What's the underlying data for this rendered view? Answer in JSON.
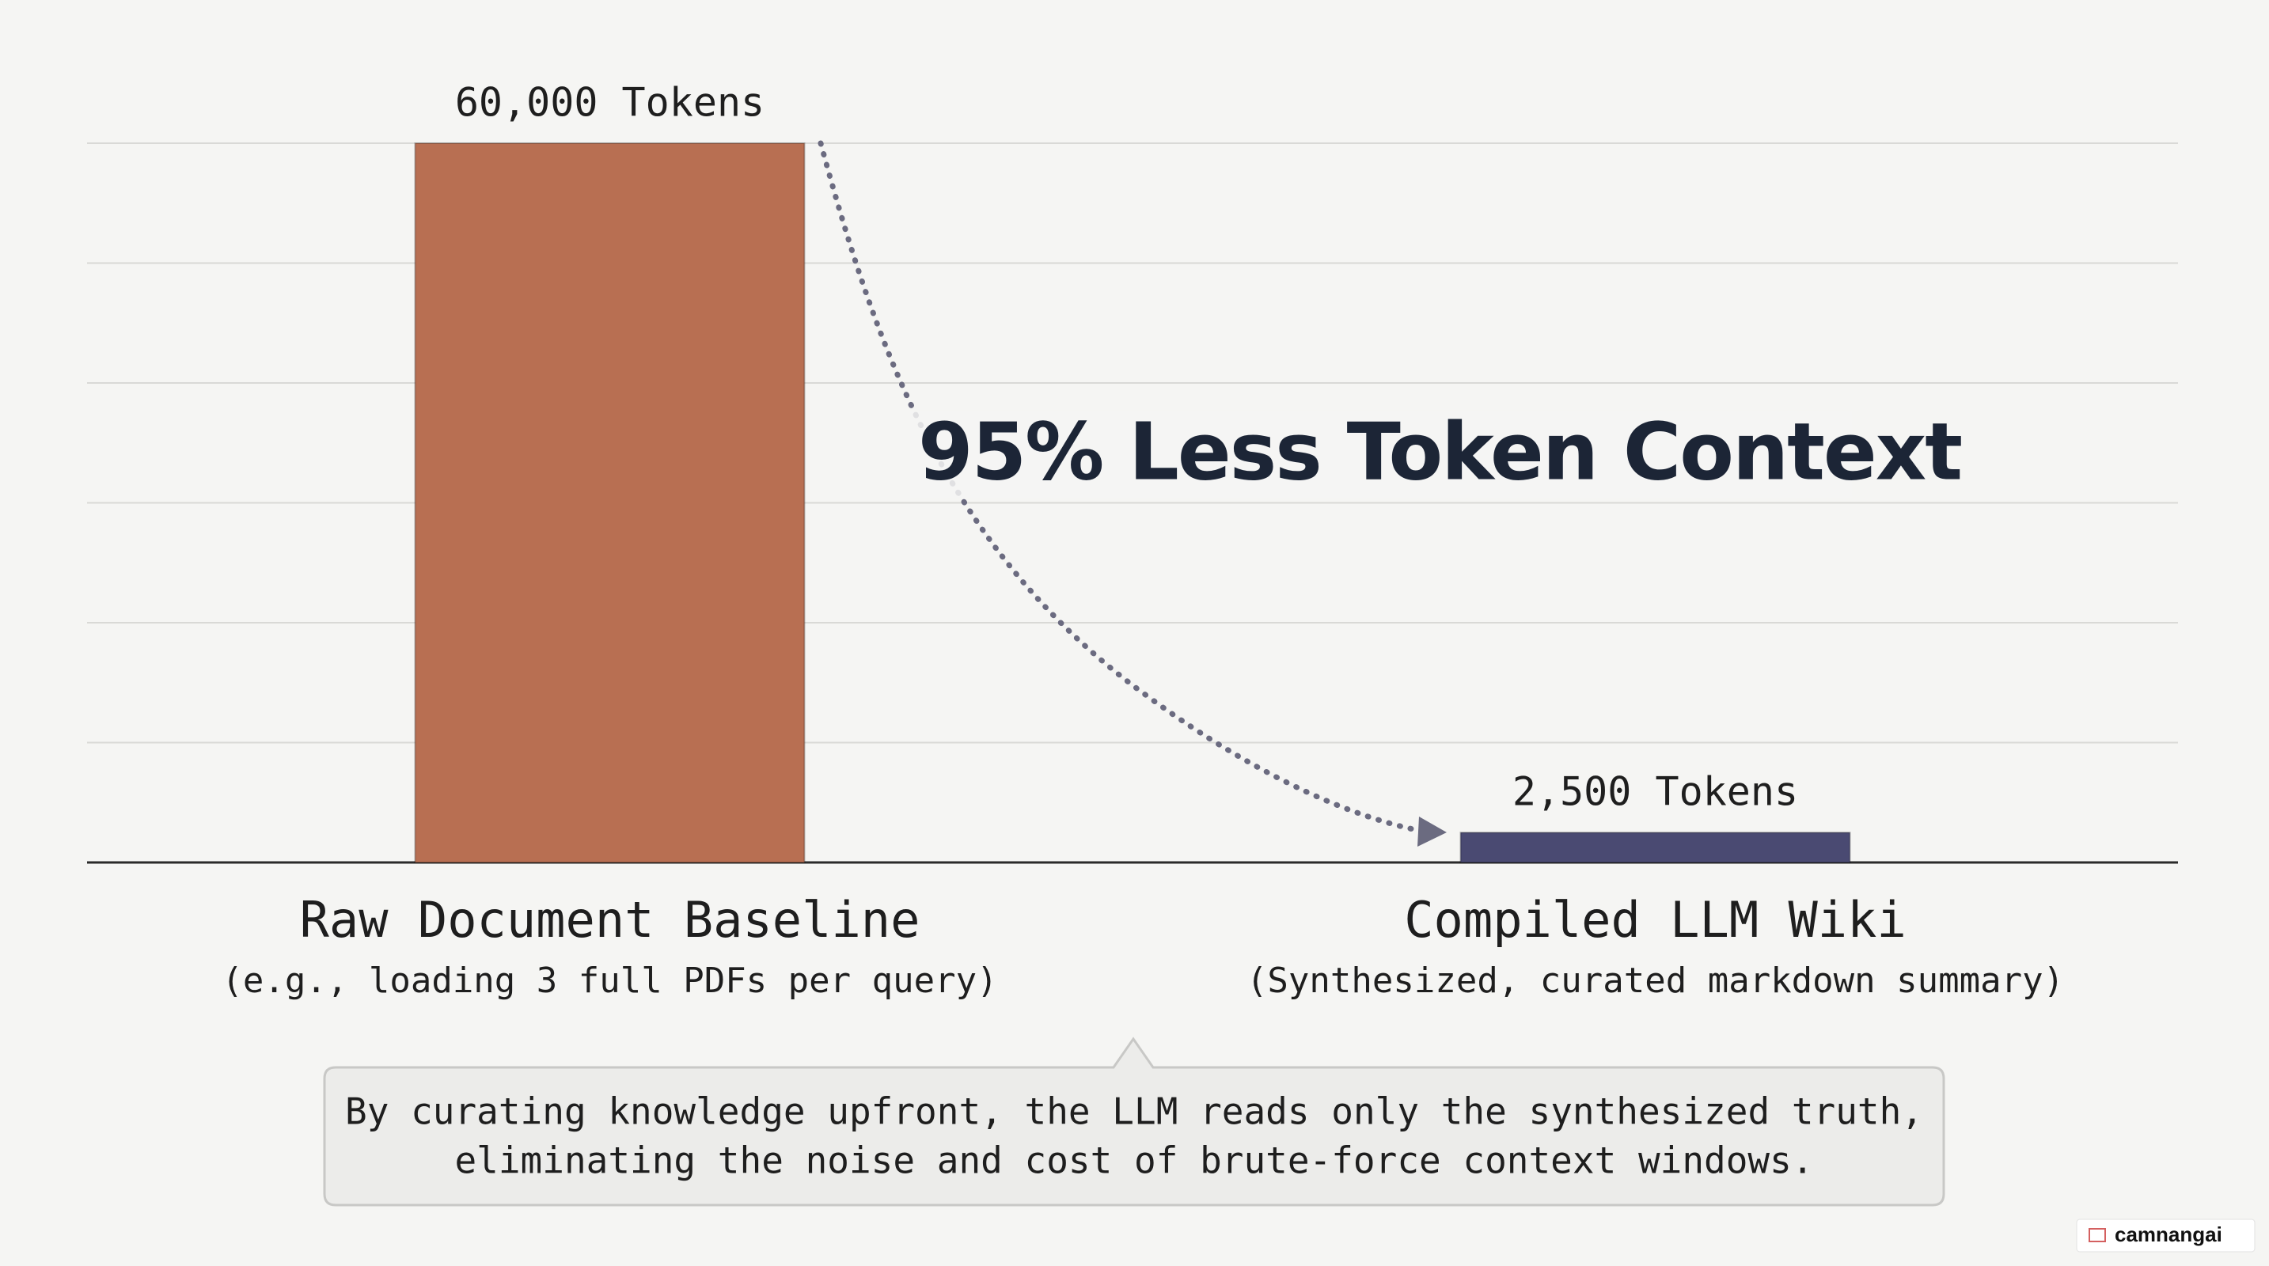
{
  "chart_data": {
    "type": "bar",
    "categories": [
      "Raw Document Baseline",
      "Compiled LLM Wiki"
    ],
    "category_notes": [
      "(e.g., loading 3 full PDFs per query)",
      "(Synthesized, curated markdown summary)"
    ],
    "values": [
      60000,
      2500
    ],
    "value_labels": [
      "60,000 Tokens",
      "2,500 Tokens"
    ],
    "colors": [
      "#b86f52",
      "#4a4a72"
    ],
    "ylim": [
      0,
      60000
    ],
    "yticks": [
      0,
      10000,
      20000,
      30000,
      40000,
      50000,
      60000
    ],
    "grid": true,
    "annotation": "95% Less Token Context"
  },
  "callout": {
    "lines": [
      "By curating knowledge upfront, the LLM reads only the synthesized truth,",
      "eliminating the noise and cost of brute-force context windows."
    ]
  },
  "watermark": "camnangai"
}
